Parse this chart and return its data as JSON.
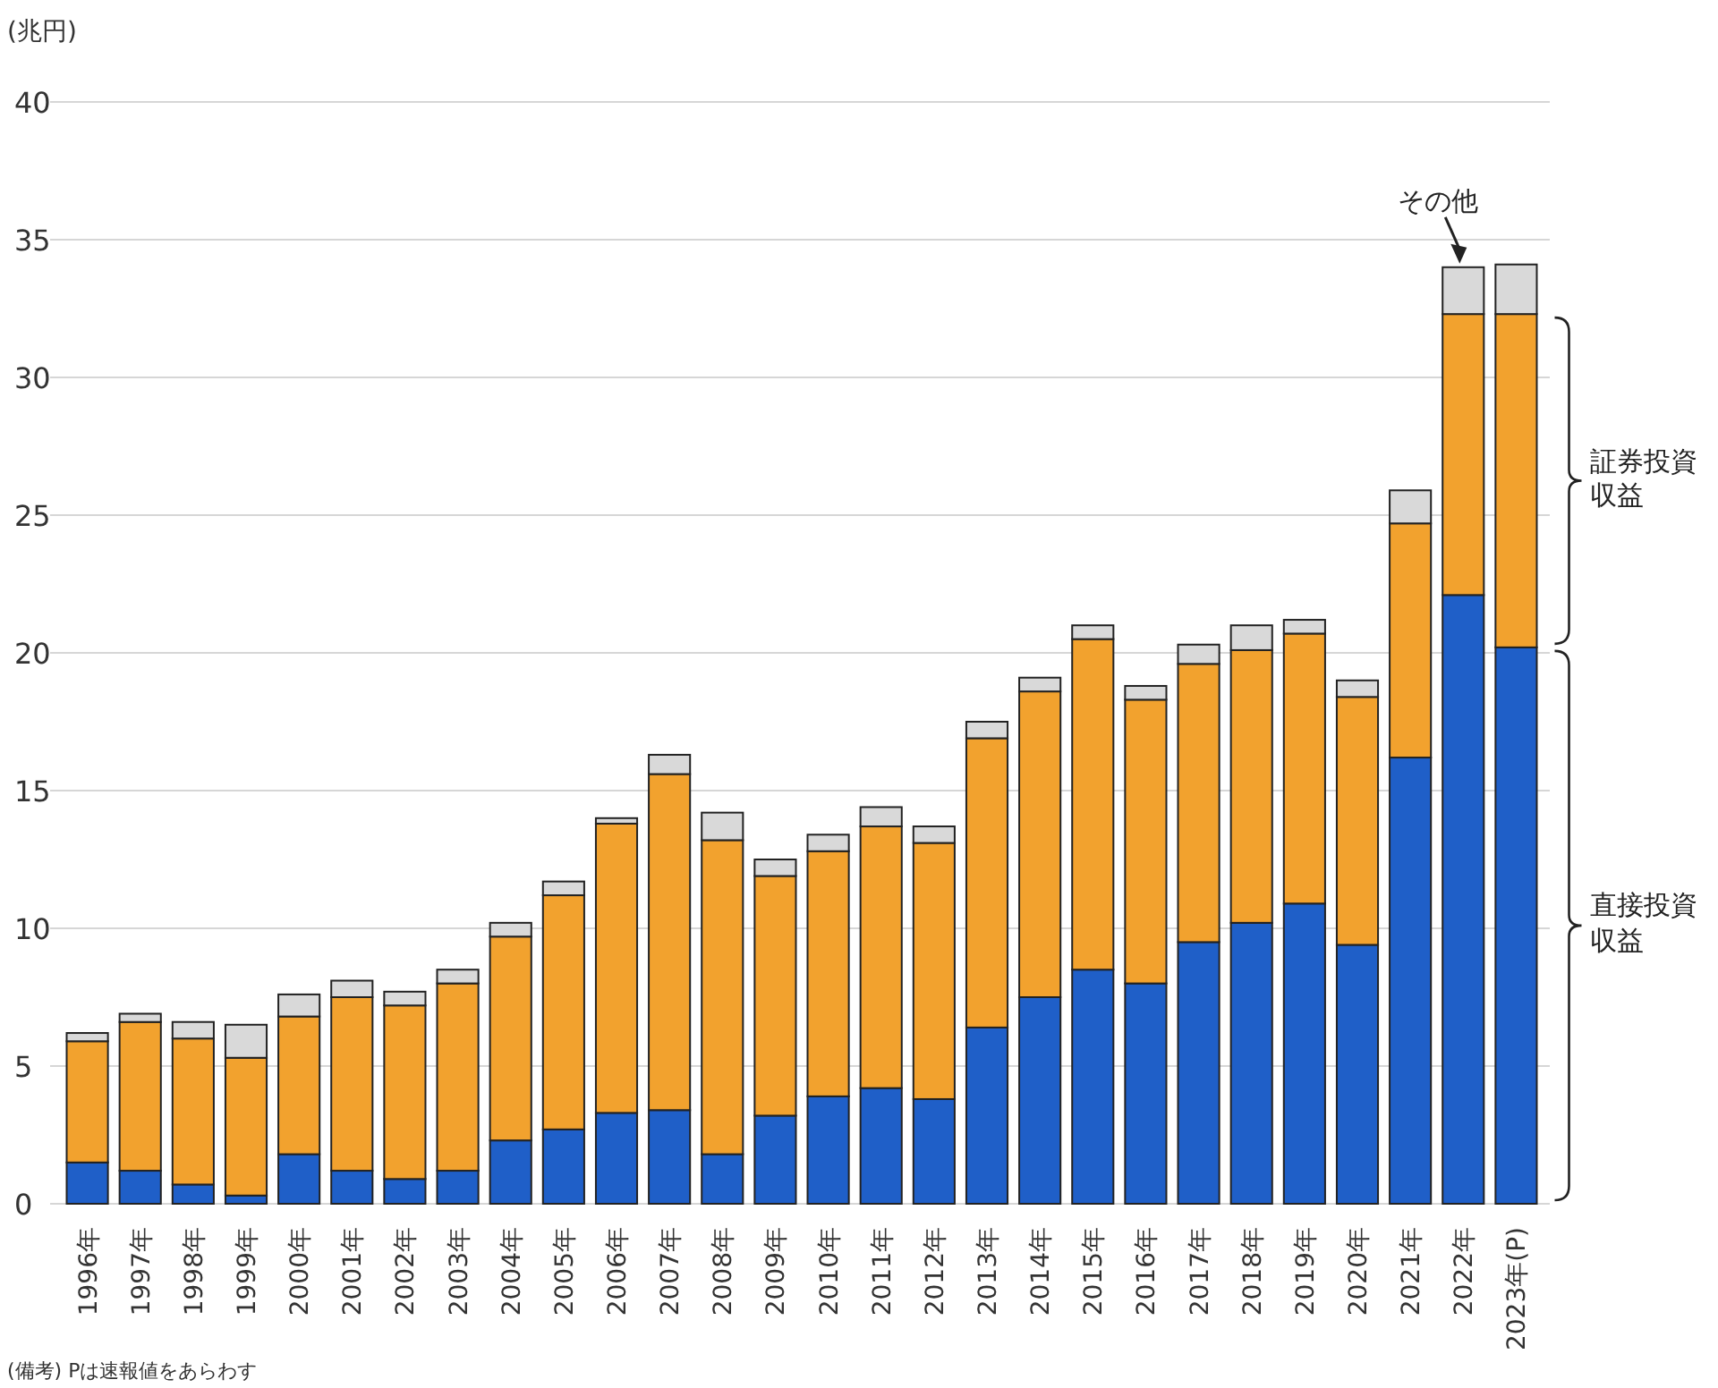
{
  "chart_data": {
    "type": "bar",
    "stacked": true,
    "ylabel": "(兆円)",
    "categories": [
      "1996年",
      "1997年",
      "1998年",
      "1999年",
      "2000年",
      "2001年",
      "2002年",
      "2003年",
      "2004年",
      "2005年",
      "2006年",
      "2007年",
      "2008年",
      "2009年",
      "2010年",
      "2011年",
      "2012年",
      "2013年",
      "2014年",
      "2015年",
      "2016年",
      "2017年",
      "2018年",
      "2019年",
      "2020年",
      "2021年",
      "2022年",
      "2023年(P)"
    ],
    "series": [
      {
        "name": "直接投資収益",
        "color": "#1f5fc8",
        "values": [
          1.5,
          1.2,
          0.7,
          0.3,
          1.8,
          1.2,
          0.9,
          1.2,
          2.3,
          2.7,
          3.3,
          3.4,
          1.8,
          3.2,
          3.9,
          4.2,
          3.8,
          6.4,
          7.5,
          8.5,
          8.0,
          9.5,
          10.2,
          10.9,
          9.4,
          16.2,
          22.1,
          20.2
        ]
      },
      {
        "name": "証券投資収益",
        "color": "#f2a22e",
        "values": [
          4.4,
          5.4,
          5.3,
          5.0,
          5.0,
          6.3,
          6.3,
          6.8,
          7.4,
          8.5,
          10.5,
          12.2,
          11.4,
          8.7,
          8.9,
          9.5,
          9.3,
          10.5,
          11.1,
          12.0,
          10.3,
          10.1,
          9.9,
          9.8,
          9.0,
          8.5,
          10.2,
          12.1
        ]
      },
      {
        "color": "#d9d9d9",
        "values": [
          0.3,
          0.3,
          0.6,
          1.2,
          0.8,
          0.6,
          0.5,
          0.5,
          0.5,
          0.5,
          0.2,
          0.7,
          1.0,
          0.6,
          0.6,
          0.7,
          0.6,
          0.6,
          0.5,
          0.5,
          0.5,
          0.7,
          0.9,
          0.5,
          0.6,
          1.2,
          1.7,
          1.8
        ]
      }
    ],
    "ylim": [
      0,
      40
    ],
    "yticks": [
      0,
      5,
      10,
      15,
      20,
      25,
      30,
      35,
      40
    ],
    "grid": "y",
    "annotations": [
      {
        "text": "その他",
        "x": "2022年",
        "y": 34.0
      },
      "(備考) Pは速報値をあらわす"
    ]
  }
}
